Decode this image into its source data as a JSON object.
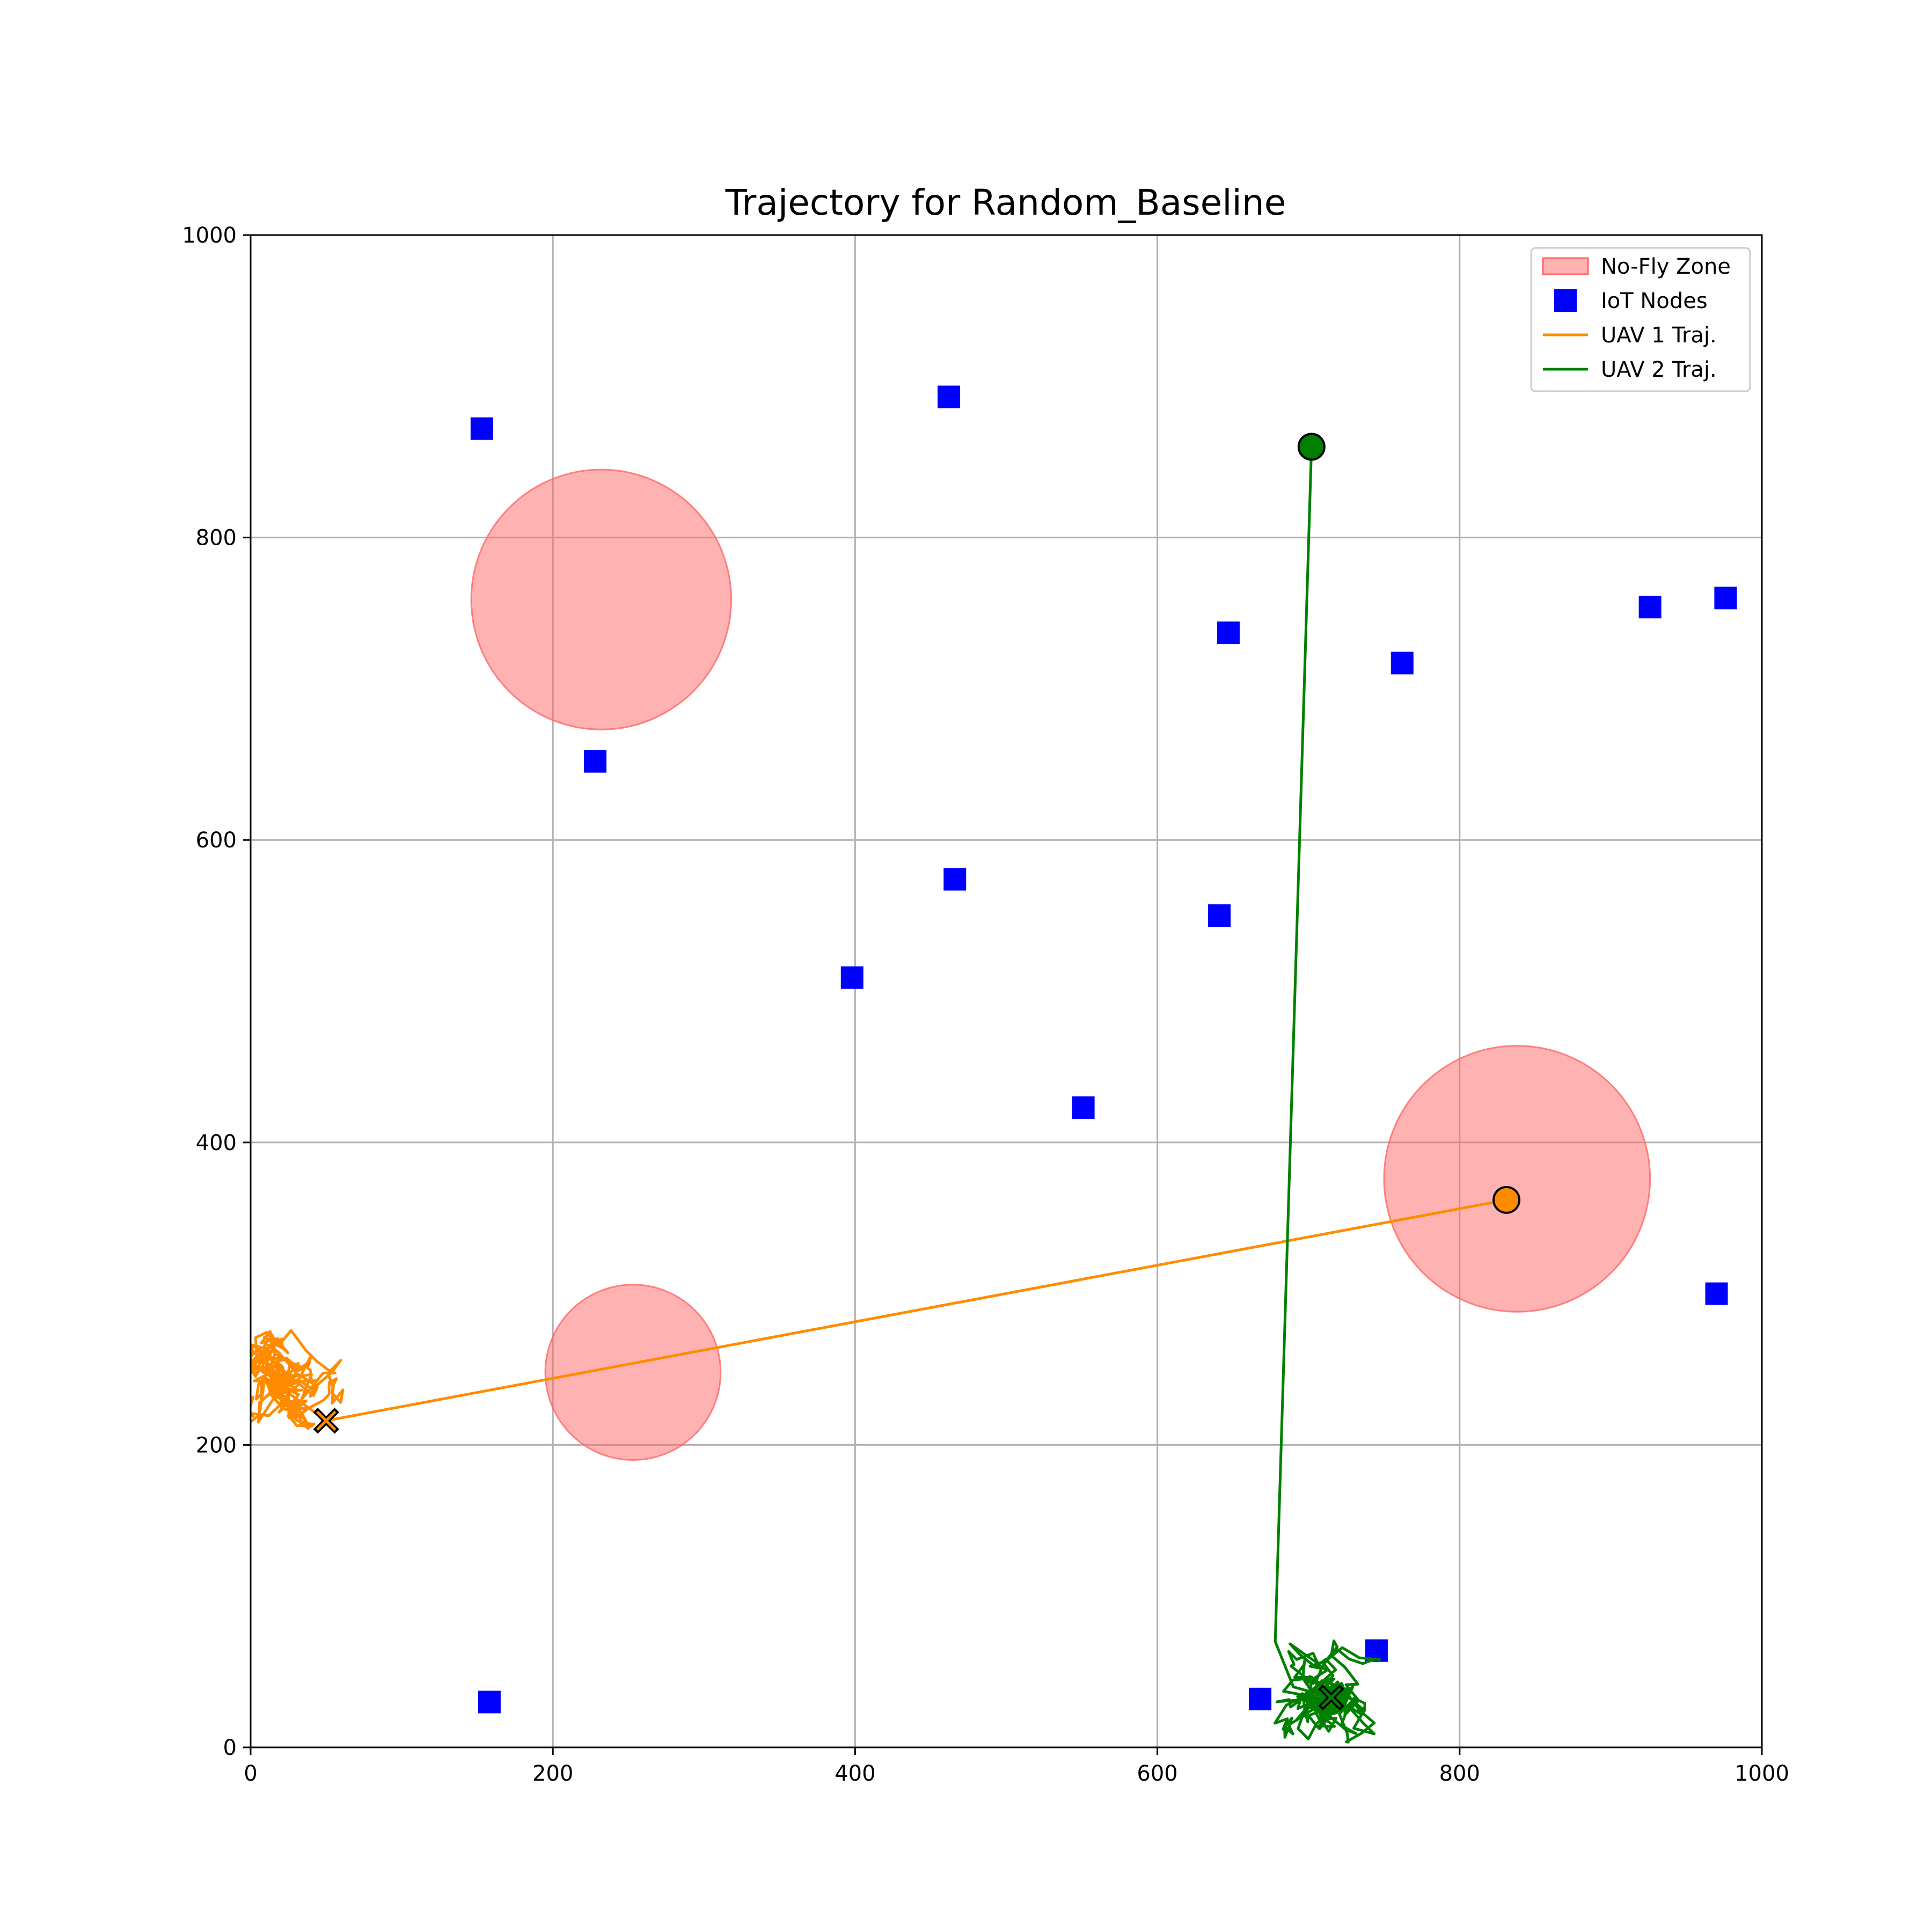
{
  "chart_data": {
    "type": "scatter",
    "title": "Trajectory for Random_Baseline",
    "xlabel": "",
    "ylabel": "",
    "xlim": [
      0,
      1000
    ],
    "ylim": [
      0,
      1000
    ],
    "xticks": [
      "0",
      "200",
      "400",
      "600",
      "800",
      "1000"
    ],
    "yticks": [
      "0",
      "200",
      "400",
      "600",
      "800",
      "1000"
    ],
    "grid": true,
    "legend_position": "top-right",
    "legend": [
      {
        "label": "No-Fly Zone",
        "kind": "patch",
        "color": "#ff6666"
      },
      {
        "label": "IoT Nodes",
        "kind": "square",
        "color": "#0000ff"
      },
      {
        "label": "UAV 1 Traj.",
        "kind": "line",
        "color": "#ff8c00"
      },
      {
        "label": "UAV 2 Traj.",
        "kind": "line",
        "color": "#008000"
      }
    ],
    "no_fly_zones": [
      {
        "cx": 232,
        "cy": 759,
        "r": 86
      },
      {
        "cx": 253,
        "cy": 248,
        "r": 58
      },
      {
        "cx": 838,
        "cy": 376,
        "r": 88
      }
    ],
    "iot_nodes": [
      [
        153,
        872
      ],
      [
        462,
        893
      ],
      [
        647,
        737
      ],
      [
        762,
        717
      ],
      [
        926,
        754
      ],
      [
        976,
        760
      ],
      [
        228,
        652
      ],
      [
        466,
        574
      ],
      [
        398,
        509
      ],
      [
        641,
        550
      ],
      [
        551,
        423
      ],
      [
        970,
        300
      ],
      [
        158,
        30
      ],
      [
        668,
        32
      ],
      [
        745,
        64
      ]
    ],
    "uavs": [
      {
        "name": "UAV 1 Traj.",
        "color": "#ff8c00",
        "cluster": {
          "cx": 22,
          "cy": 243,
          "sx": 40,
          "sy": 70,
          "steps": 260,
          "seed": 7
        },
        "path": [
          [
            5,
            215
          ],
          [
            20,
            238
          ],
          [
            50,
            216
          ],
          [
            831,
            362
          ]
        ],
        "start": [
          831,
          362
        ],
        "end": [
          50,
          216
        ]
      },
      {
        "name": "UAV 2 Traj.",
        "color": "#008000",
        "cluster": {
          "cx": 703,
          "cy": 45,
          "sx": 68,
          "sy": 52,
          "steps": 240,
          "seed": 13
        },
        "path": [
          [
            715,
            33
          ],
          [
            690,
            40
          ],
          [
            678,
            70
          ],
          [
            702,
            860
          ]
        ],
        "start": [
          702,
          860
        ],
        "end": [
          715,
          33
        ]
      }
    ]
  }
}
